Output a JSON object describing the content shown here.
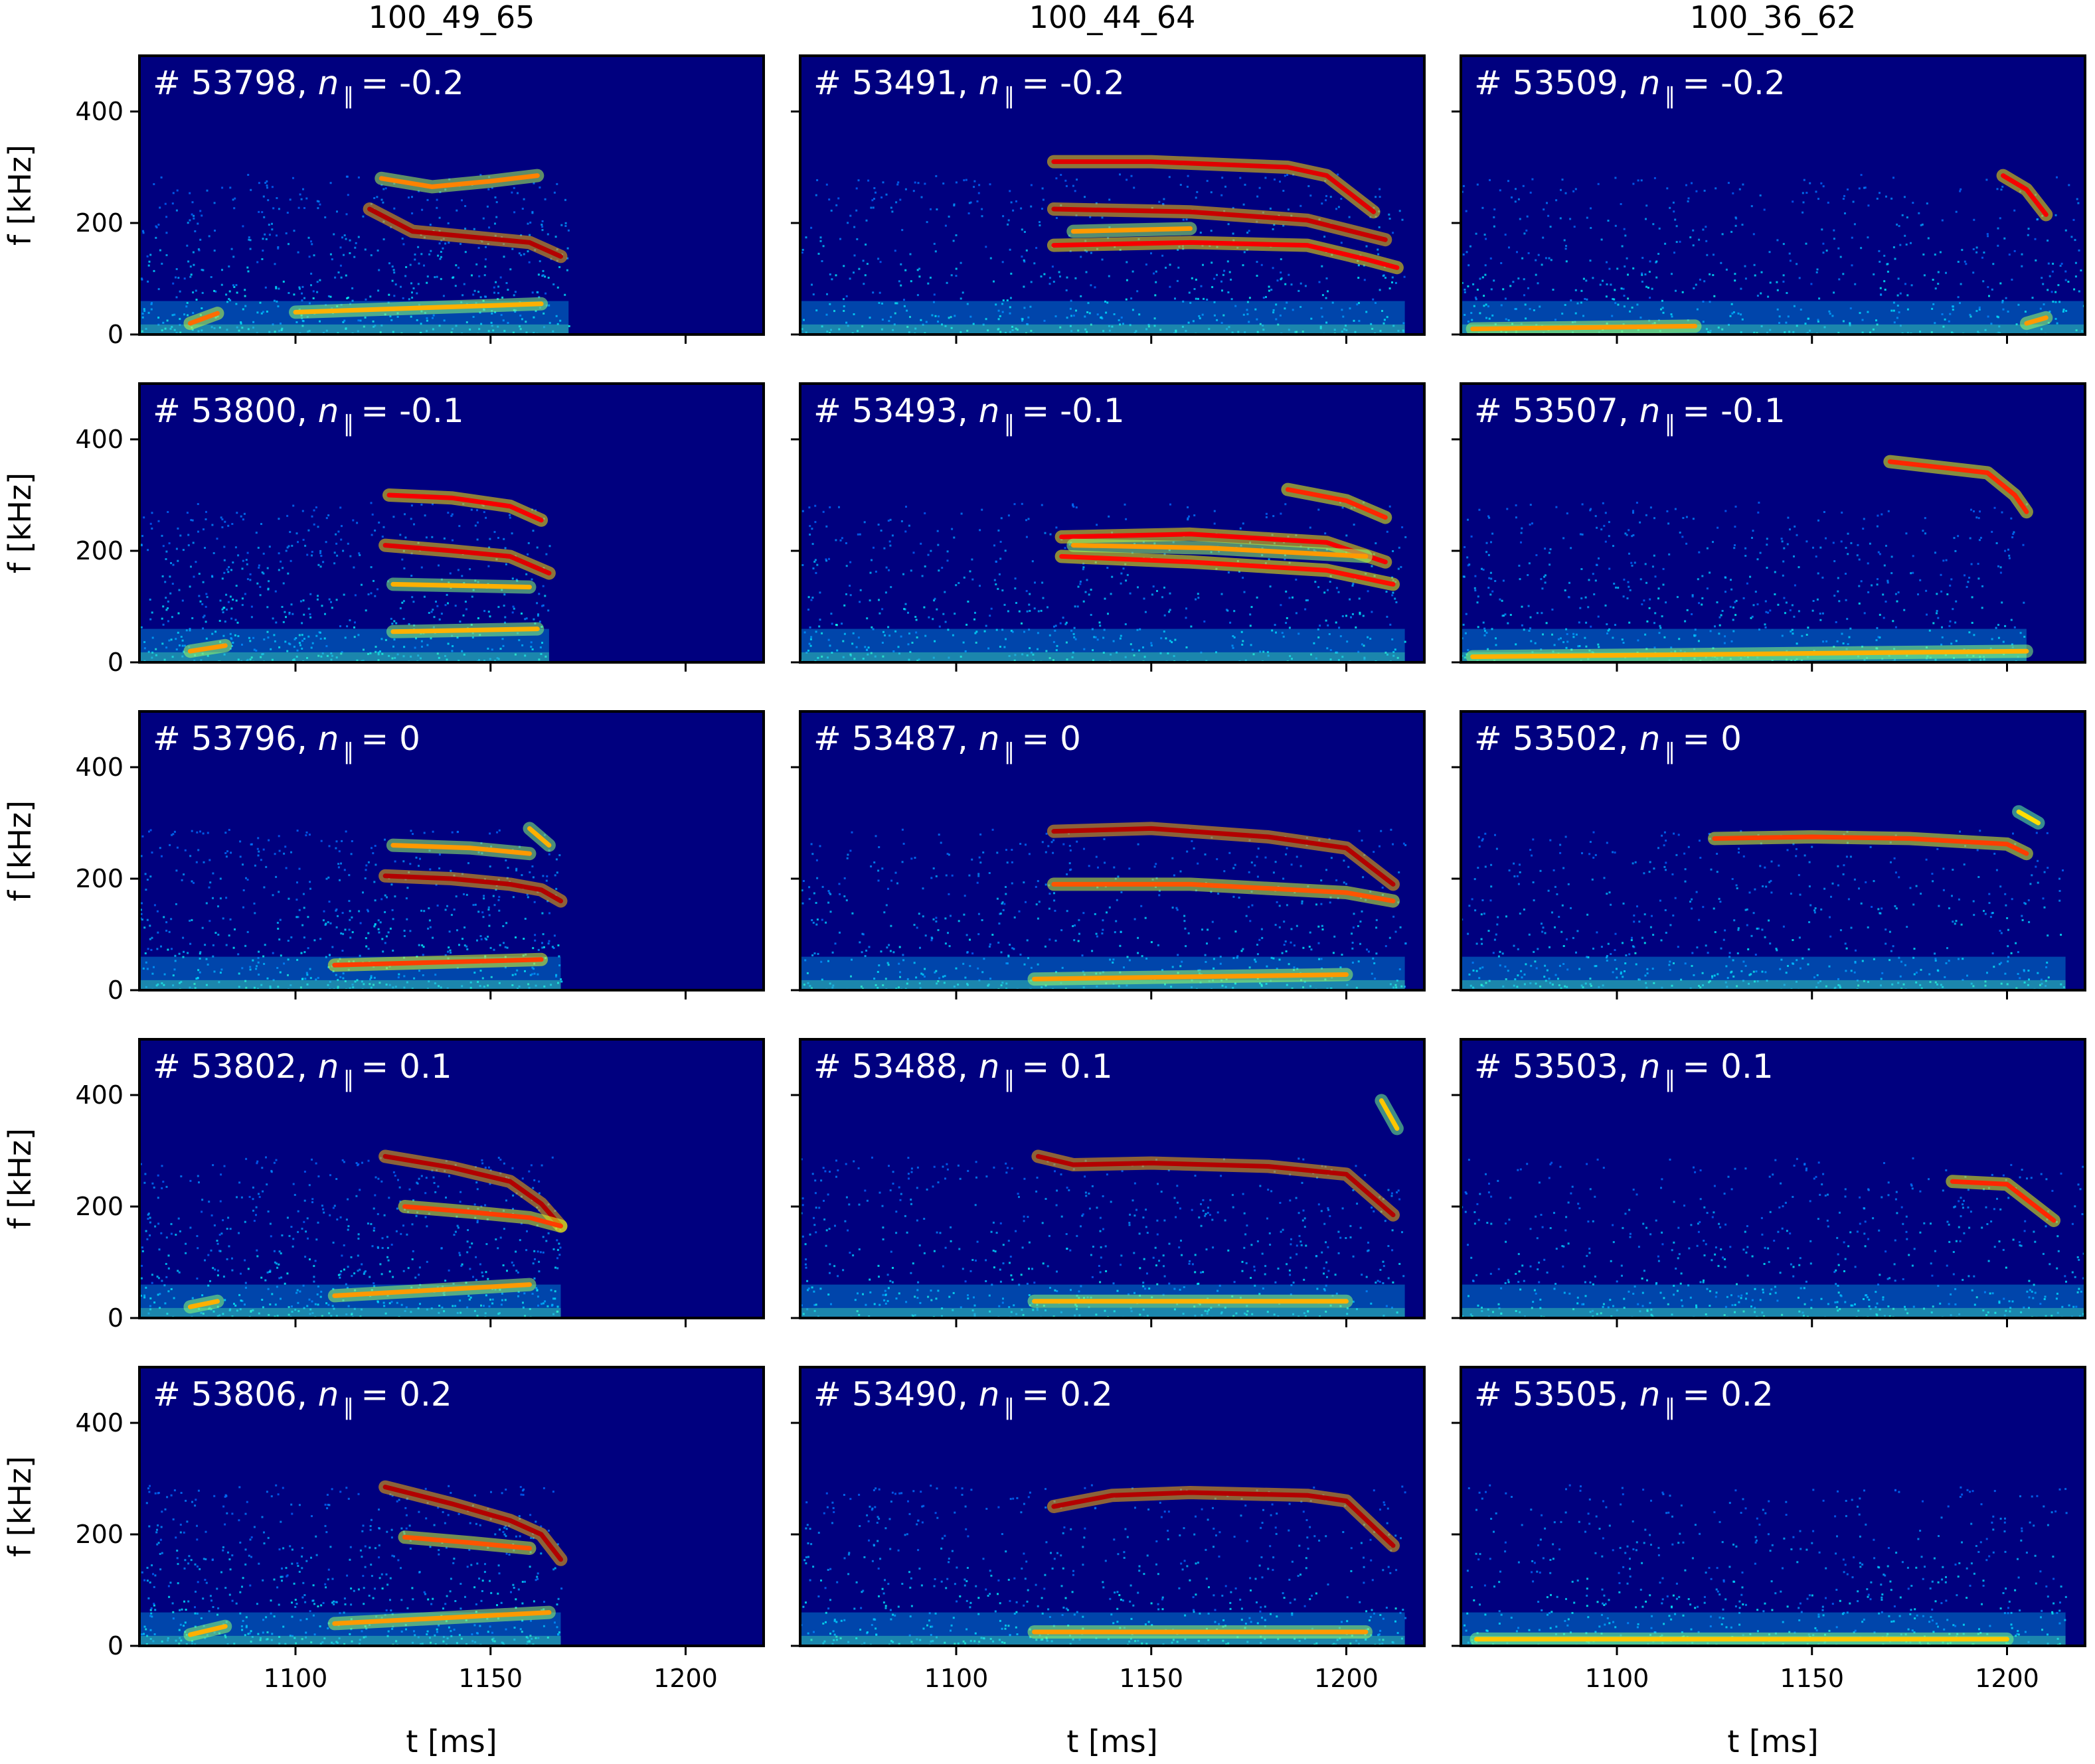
{
  "chart_data": {
    "type": "heatmap",
    "layout": {
      "rows": 5,
      "columns": 3,
      "sharex": true,
      "sharey": true
    },
    "column_titles": [
      "100_49_65",
      "100_44_64",
      "100_36_62"
    ],
    "xlabel": "t  [ms]",
    "ylabel": "f  [kHz]",
    "xlim": [
      1060,
      1220
    ],
    "ylim": [
      0,
      500
    ],
    "xticks": [
      1100,
      1150,
      1200
    ],
    "yticks": [
      0,
      200,
      400
    ],
    "colormap": "jet",
    "panel_label_symbol": "n",
    "panel_label_subscript": "∥",
    "panels": [
      {
        "row": 0,
        "col": 0,
        "shot": "# 53798,",
        "npar": "-0.2",
        "signal_start": 1060,
        "signal_end": 1170,
        "modes": [
          {
            "t": [
              1119,
              1130,
              1145,
              1160,
              1168
            ],
            "f": [
              225,
              185,
              175,
              165,
              140
            ],
            "s": 1.0
          },
          {
            "t": [
              1122,
              1135,
              1150,
              1162
            ],
            "f": [
              280,
              265,
              275,
              285
            ],
            "s": 0.55
          },
          {
            "t": [
              1073,
              1080
            ],
            "f": [
              20,
              38
            ],
            "s": 0.6
          },
          {
            "t": [
              1100,
              1163
            ],
            "f": [
              40,
              55
            ],
            "s": 0.45
          }
        ]
      },
      {
        "row": 0,
        "col": 1,
        "shot": "# 53491,",
        "npar": "-0.2",
        "signal_start": 1060,
        "signal_end": 1215,
        "modes": [
          {
            "t": [
              1125,
              1150,
              1185,
              1195,
              1207
            ],
            "f": [
              310,
              310,
              300,
              285,
              220
            ],
            "s": 0.9
          },
          {
            "t": [
              1125,
              1160,
              1190,
              1210
            ],
            "f": [
              225,
              220,
              205,
              170
            ],
            "s": 0.95
          },
          {
            "t": [
              1125,
              1160,
              1190,
              1205,
              1213
            ],
            "f": [
              160,
              165,
              160,
              135,
              120
            ],
            "s": 0.85
          },
          {
            "t": [
              1130,
              1160
            ],
            "f": [
              185,
              190
            ],
            "s": 0.5
          }
        ]
      },
      {
        "row": 0,
        "col": 2,
        "shot": "# 53509,",
        "npar": "-0.2",
        "signal_start": 1060,
        "signal_end": 1220,
        "modes": [
          {
            "t": [
              1199,
              1205,
              1210
            ],
            "f": [
              285,
              260,
              215
            ],
            "s": 0.85
          },
          {
            "t": [
              1063,
              1120
            ],
            "f": [
              10,
              15
            ],
            "s": 0.5
          },
          {
            "t": [
              1205,
              1210
            ],
            "f": [
              20,
              30
            ],
            "s": 0.5
          }
        ]
      },
      {
        "row": 1,
        "col": 0,
        "shot": "# 53800,",
        "npar": "-0.1",
        "signal_start": 1060,
        "signal_end": 1165,
        "modes": [
          {
            "t": [
              1124,
              1140,
              1155,
              1163
            ],
            "f": [
              300,
              295,
              280,
              255
            ],
            "s": 0.85
          },
          {
            "t": [
              1123,
              1140,
              1155,
              1165
            ],
            "f": [
              210,
              200,
              190,
              160
            ],
            "s": 0.9
          },
          {
            "t": [
              1125,
              1160
            ],
            "f": [
              140,
              135
            ],
            "s": 0.45
          },
          {
            "t": [
              1073,
              1082
            ],
            "f": [
              20,
              30
            ],
            "s": 0.5
          },
          {
            "t": [
              1125,
              1162
            ],
            "f": [
              55,
              60
            ],
            "s": 0.45
          }
        ]
      },
      {
        "row": 1,
        "col": 1,
        "shot": "# 53493,",
        "npar": "-0.1",
        "signal_start": 1060,
        "signal_end": 1215,
        "modes": [
          {
            "t": [
              1185,
              1200,
              1210
            ],
            "f": [
              310,
              290,
              260
            ],
            "s": 0.75
          },
          {
            "t": [
              1127,
              1160,
              1195,
              1210
            ],
            "f": [
              225,
              230,
              215,
              180
            ],
            "s": 0.85
          },
          {
            "t": [
              1127,
              1160,
              1195,
              1212
            ],
            "f": [
              190,
              180,
              165,
              140
            ],
            "s": 0.8
          },
          {
            "t": [
              1130,
              1165,
              1205
            ],
            "f": [
              210,
              205,
              190
            ],
            "s": 0.5
          }
        ]
      },
      {
        "row": 1,
        "col": 2,
        "shot": "# 53507,",
        "npar": "-0.1",
        "signal_start": 1060,
        "signal_end": 1205,
        "modes": [
          {
            "t": [
              1170,
              1195,
              1202,
              1205
            ],
            "f": [
              360,
              340,
              300,
              270
            ],
            "s": 0.75
          },
          {
            "t": [
              1063,
              1205
            ],
            "f": [
              10,
              20
            ],
            "s": 0.45
          }
        ]
      },
      {
        "row": 2,
        "col": 0,
        "shot": "# 53796,",
        "npar": "0",
        "signal_start": 1060,
        "signal_end": 1168,
        "modes": [
          {
            "t": [
              1123,
              1140,
              1155,
              1163,
              1168
            ],
            "f": [
              205,
              200,
              190,
              180,
              160
            ],
            "s": 1.0
          },
          {
            "t": [
              1125,
              1145,
              1160
            ],
            "f": [
              260,
              255,
              245
            ],
            "s": 0.5
          },
          {
            "t": [
              1110,
              1163
            ],
            "f": [
              45,
              55
            ],
            "s": 0.7
          },
          {
            "t": [
              1160,
              1165
            ],
            "f": [
              290,
              260
            ],
            "s": 0.45
          }
        ]
      },
      {
        "row": 2,
        "col": 1,
        "shot": "# 53487,",
        "npar": "0",
        "signal_start": 1060,
        "signal_end": 1215,
        "modes": [
          {
            "t": [
              1125,
              1150,
              1180,
              1200,
              1212
            ],
            "f": [
              285,
              290,
              275,
              255,
              190
            ],
            "s": 1.0
          },
          {
            "t": [
              1125,
              1160,
              1200,
              1212
            ],
            "f": [
              190,
              190,
              175,
              160
            ],
            "s": 0.65
          },
          {
            "t": [
              1120,
              1200
            ],
            "f": [
              20,
              28
            ],
            "s": 0.5
          }
        ]
      },
      {
        "row": 2,
        "col": 2,
        "shot": "# 53502,",
        "npar": "0",
        "signal_start": 1060,
        "signal_end": 1215,
        "modes": [
          {
            "t": [
              1125,
              1150,
              1175,
              1200,
              1205
            ],
            "f": [
              272,
              275,
              272,
              262,
              245
            ],
            "s": 0.7
          },
          {
            "t": [
              1203,
              1208
            ],
            "f": [
              320,
              300
            ],
            "s": 0.35
          }
        ]
      },
      {
        "row": 3,
        "col": 0,
        "shot": "# 53802,",
        "npar": "0.1",
        "signal_start": 1060,
        "signal_end": 1168,
        "modes": [
          {
            "t": [
              1123,
              1140,
              1155,
              1163,
              1168
            ],
            "f": [
              290,
              270,
              245,
              205,
              165
            ],
            "s": 1.0
          },
          {
            "t": [
              1128,
              1145,
              1160,
              1168
            ],
            "f": [
              200,
              190,
              180,
              165
            ],
            "s": 0.7
          },
          {
            "t": [
              1073,
              1080
            ],
            "f": [
              20,
              30
            ],
            "s": 0.45
          },
          {
            "t": [
              1110,
              1160
            ],
            "f": [
              40,
              60
            ],
            "s": 0.5
          }
        ]
      },
      {
        "row": 3,
        "col": 1,
        "shot": "# 53488,",
        "npar": "0.1",
        "signal_start": 1060,
        "signal_end": 1215,
        "modes": [
          {
            "t": [
              1121,
              1130,
              1150,
              1180,
              1200,
              1212
            ],
            "f": [
              290,
              275,
              278,
              272,
              258,
              185
            ],
            "s": 1.0
          },
          {
            "t": [
              1209,
              1213
            ],
            "f": [
              390,
              340
            ],
            "s": 0.4
          },
          {
            "t": [
              1120,
              1200
            ],
            "f": [
              30,
              30
            ],
            "s": 0.45
          }
        ]
      },
      {
        "row": 3,
        "col": 2,
        "shot": "# 53503,",
        "npar": "0.1",
        "signal_start": 1060,
        "signal_end": 1220,
        "modes": [
          {
            "t": [
              1186,
              1200,
              1212
            ],
            "f": [
              245,
              240,
              175
            ],
            "s": 0.75
          }
        ]
      },
      {
        "row": 4,
        "col": 0,
        "shot": "# 53806,",
        "npar": "0.2",
        "signal_start": 1060,
        "signal_end": 1168,
        "modes": [
          {
            "t": [
              1123,
              1140,
              1155,
              1163,
              1168
            ],
            "f": [
              285,
              255,
              225,
              200,
              155
            ],
            "s": 1.0
          },
          {
            "t": [
              1128,
              1145,
              1160
            ],
            "f": [
              195,
              185,
              175
            ],
            "s": 0.65
          },
          {
            "t": [
              1073,
              1082
            ],
            "f": [
              20,
              35
            ],
            "s": 0.45
          },
          {
            "t": [
              1110,
              1165
            ],
            "f": [
              40,
              60
            ],
            "s": 0.5
          }
        ]
      },
      {
        "row": 4,
        "col": 1,
        "shot": "# 53490,",
        "npar": "0.2",
        "signal_start": 1060,
        "signal_end": 1215,
        "modes": [
          {
            "t": [
              1125,
              1140,
              1160,
              1190,
              1200,
              1212
            ],
            "f": [
              250,
              270,
              275,
              270,
              260,
              180
            ],
            "s": 1.0
          },
          {
            "t": [
              1120,
              1205
            ],
            "f": [
              25,
              25
            ],
            "s": 0.5
          }
        ]
      },
      {
        "row": 4,
        "col": 2,
        "shot": "# 53505,",
        "npar": "0.2",
        "signal_start": 1060,
        "signal_end": 1215,
        "modes": [
          {
            "t": [
              1064,
              1200
            ],
            "f": [
              12,
              12
            ],
            "s": 0.4
          }
        ]
      }
    ]
  }
}
